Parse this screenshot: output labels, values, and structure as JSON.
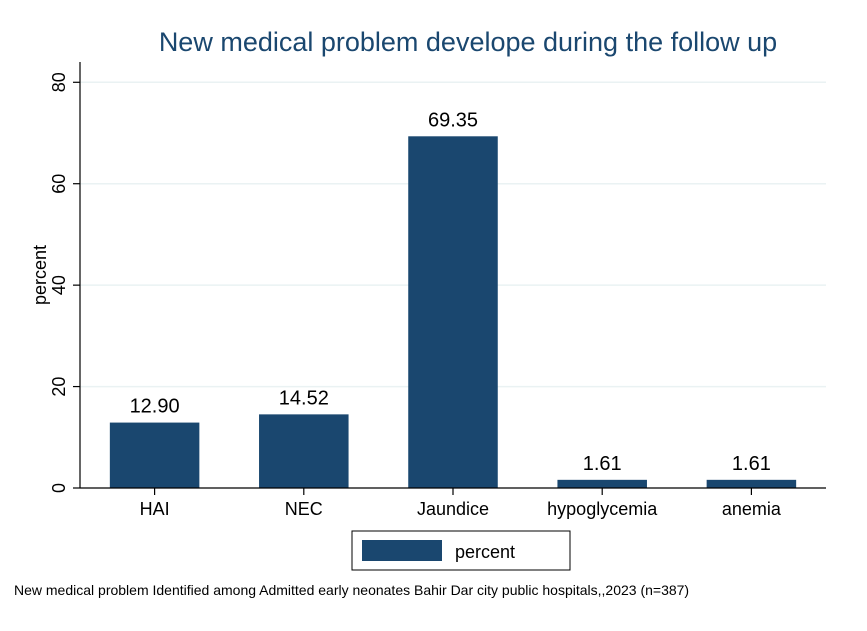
{
  "chart_data": {
    "type": "bar",
    "title": "New medical problem develope during the follow up",
    "ylabel": "percent",
    "xlabel": "",
    "categories": [
      "HAI",
      "NEC",
      "Jaundice",
      "hypoglycemia",
      "anemia"
    ],
    "series": [
      {
        "name": "percent",
        "values": [
          12.9,
          14.52,
          69.35,
          1.61,
          1.61
        ]
      }
    ],
    "data_labels": [
      "12.90",
      "14.52",
      "69.35",
      "1.61",
      "1.61"
    ],
    "ylim": [
      0,
      84
    ],
    "yticks": [
      0,
      20,
      40,
      60,
      80
    ],
    "grid": true,
    "legend_position": "bottom",
    "note": "New medical problem Identified among  Admitted early neonates  Bahir Dar city public hospitals,,2023 (n=387)",
    "colors": {
      "bar": "#1a476f",
      "grid": "#eaf2f3",
      "axis": "#000000",
      "title": "#1a476f"
    }
  }
}
